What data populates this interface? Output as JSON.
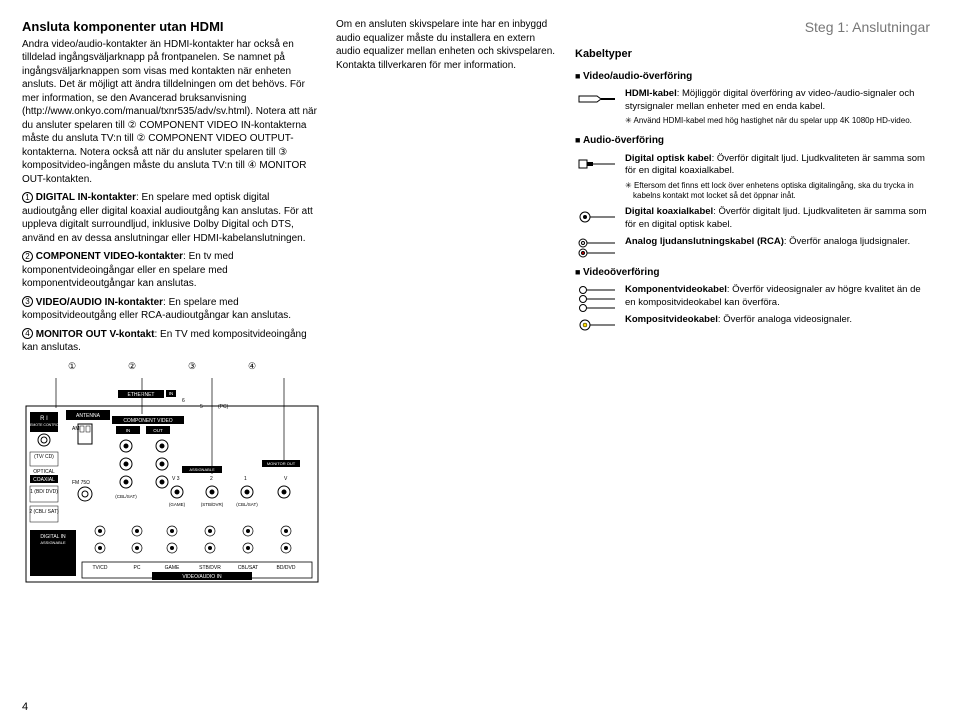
{
  "page_number": "4",
  "step_header": "Steg 1: Anslutningar",
  "col1": {
    "title": "Ansluta komponenter utan HDMI",
    "para1": "Andra video/audio-kontakter än HDMI-kontakter har också en tilldelad ingångsväljarknapp på frontpanelen. Se namnet på ingångsväljarknappen som visas med kontakten när enheten ansluts. Det är möjligt att ändra tilldelningen om det behövs. För mer information, se den Avancerad bruksanvisning (http://www.onkyo.com/manual/txnr535/adv/sv.html). Notera att när du ansluter spelaren till ② COMPONENT VIDEO IN-kontakterna måste du ansluta TV:n till ② COMPONENT VIDEO OUTPUT-kontakterna. Notera också att när du ansluter spelaren till ③ kompositvideo-ingången måste du ansluta TV:n till ④ MONITOR OUT-kontakten.",
    "items": [
      {
        "num": "1",
        "bold": "DIGITAL IN-kontakter",
        "text": ": En spelare med optisk digital audioutgång eller digital koaxial audioutgång kan anslutas. För att uppleva digitalt surroundljud, inklusive Dolby Digital och DTS, använd en av dessa anslutningar eller HDMI-kabelanslutningen."
      },
      {
        "num": "2",
        "bold": "COMPONENT VIDEO-kontakter",
        "text": ": En tv med komponentvideoingångar eller en spelare med komponentvideoutgångar kan anslutas."
      },
      {
        "num": "3",
        "bold": "VIDEO/AUDIO IN-kontakter",
        "text": ": En spelare med kompositvideoutgång eller RCA-audioutgångar kan anslutas."
      },
      {
        "num": "4",
        "bold": "MONITOR OUT V-kontakt",
        "text": ": En TV med kompositvideoingång kan anslutas."
      }
    ],
    "panel_labels_top": [
      "①",
      "②",
      "③",
      "④"
    ]
  },
  "col2": {
    "para": "Om en ansluten skivspelare inte har en inbyggd audio equalizer måste du installera en extern audio equalizer mellan enheten och skivspelaren. Kontakta tillverkaren för mer information."
  },
  "col3": {
    "kabeltyper": "Kabeltyper",
    "sec1_title": "Video/audio-överföring",
    "sec1": [
      {
        "bold": "HDMI-kabel",
        "text": ": Möjliggör digital överföring av video-/audio-signaler och styrsignaler mellan enheter med en enda kabel.",
        "note": "Använd HDMI-kabel med hög hastighet när du spelar upp 4K 1080p HD-video.",
        "icon": "hdmi"
      }
    ],
    "sec2_title": "Audio-överföring",
    "sec2": [
      {
        "bold": "Digital optisk kabel",
        "text": ": Överför digitalt ljud. Ljudkvaliteten är samma som för en digital koaxialkabel.",
        "note": "Eftersom det finns ett lock över enhetens optiska digitalingång, ska du trycka in kabelns kontakt mot locket så det öppnar inåt.",
        "icon": "optical"
      },
      {
        "bold": "Digital koaxialkabel",
        "text": ": Överför digitalt ljud. Ljudkvaliteten är samma som för en digital optisk kabel.",
        "icon": "coax"
      },
      {
        "bold": "Analog ljudanslutningskabel (RCA)",
        "text": ": Överför analoga ljudsignaler.",
        "icon": "rca2"
      }
    ],
    "sec3_title": "Videoöverföring",
    "sec3": [
      {
        "bold": "Komponentvideokabel",
        "text": ": Överför videosignaler av högre kvalitet än de en kompositvideokabel kan överföra.",
        "icon": "comp3"
      },
      {
        "bold": "Kompositvideokabel",
        "text": ": Överför analoga videosignaler.",
        "icon": "comp1"
      }
    ]
  },
  "panel": {
    "labels": {
      "ethernet": "ETHERNET",
      "ri": "R I",
      "remote": "REMOTE CONTROL",
      "antenna": "ANTENNA",
      "am": "AM",
      "fm": "FM 75Ω",
      "tvcd": "(TV/ CD)",
      "optical": "OPTICAL",
      "coaxial": "COAXIAL",
      "bddvd": "1 (BD/ DVD)",
      "cblsat": "2 (CBL/ SAT)",
      "digitalin": "DIGITAL IN",
      "assignable": "ASSIGNABLE",
      "compvideo": "COMPONENT VIDEO",
      "in": "IN",
      "out": "OUT",
      "monitorout": "MONITOR OUT",
      "cblsat2": "(CBL/SAT)",
      "game": "(GAME)",
      "stbdvr": "(STB/DVR)",
      "videoaudioin": "VIDEO/AUDIO IN",
      "bottom_tvcd": "TV/CD",
      "bottom_pc": "PC",
      "bottom_game": "GAME",
      "bottom_stb": "STB/DVR",
      "bottom_cbl": "CBL/SAT",
      "bottom_bd": "BD/DVD"
    }
  }
}
